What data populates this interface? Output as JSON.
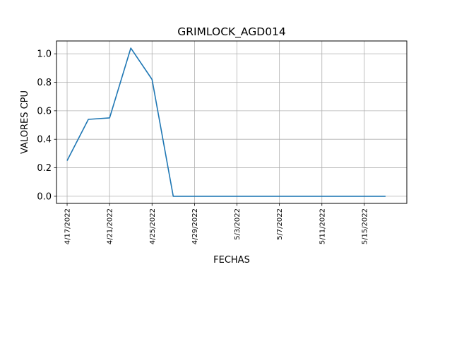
{
  "chart_data": {
    "type": "line",
    "title": "GRIMLOCK_AGD014",
    "xlabel": "FECHAS",
    "ylabel": "VALORES CPU",
    "x_type": "date",
    "xlim": [
      "2022-04-16",
      "2022-05-19"
    ],
    "ylim": [
      -0.05,
      1.09
    ],
    "x_ticks": [
      {
        "date": "2022-04-17",
        "label": "4/17/2022"
      },
      {
        "date": "2022-04-21",
        "label": "4/21/2022"
      },
      {
        "date": "2022-04-25",
        "label": "4/25/2022"
      },
      {
        "date": "2022-04-29",
        "label": "4/29/2022"
      },
      {
        "date": "2022-05-03",
        "label": "5/3/2022"
      },
      {
        "date": "2022-05-07",
        "label": "5/7/2022"
      },
      {
        "date": "2022-05-11",
        "label": "5/11/2022"
      },
      {
        "date": "2022-05-15",
        "label": "5/15/2022"
      }
    ],
    "y_ticks": [
      0.0,
      0.2,
      0.4,
      0.6,
      0.8,
      1.0
    ],
    "y_tick_labels": [
      "0.0",
      "0.2",
      "0.4",
      "0.6",
      "0.8",
      "1.0"
    ],
    "grid": true,
    "line_color": "#1f77b4",
    "series": [
      {
        "x": [
          "2022-04-17",
          "2022-04-19",
          "2022-04-21",
          "2022-04-23",
          "2022-04-25",
          "2022-04-27",
          "2022-04-29",
          "2022-05-01",
          "2022-05-03",
          "2022-05-05",
          "2022-05-07",
          "2022-05-09",
          "2022-05-11",
          "2022-05-13",
          "2022-05-15",
          "2022-05-17"
        ],
        "values": [
          0.25,
          0.54,
          0.55,
          1.04,
          0.82,
          0.0,
          0.0,
          0.0,
          0.0,
          0.0,
          0.0,
          0.0,
          0.0,
          0.0,
          0.0,
          0.0
        ]
      }
    ]
  }
}
